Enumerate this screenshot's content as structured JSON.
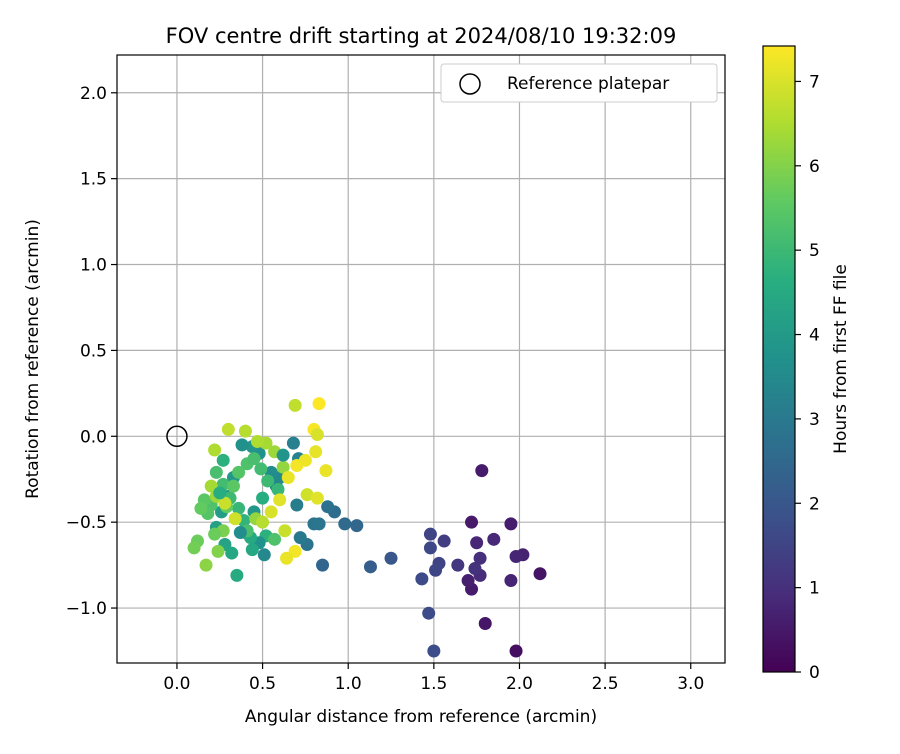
{
  "chart_data": {
    "type": "scatter",
    "title": "FOV centre drift starting at 2024/08/10 19:32:09",
    "xlabel": "Angular distance from reference (arcmin)",
    "ylabel": "Rotation from reference (arcmin)",
    "xlim": [
      -0.35,
      3.2
    ],
    "ylim": [
      -1.32,
      2.22
    ],
    "xticks": [
      0.0,
      0.5,
      1.0,
      1.5,
      2.0,
      2.5,
      3.0
    ],
    "xtick_labels": [
      "0.0",
      "0.5",
      "1.0",
      "1.5",
      "2.0",
      "2.5",
      "3.0"
    ],
    "yticks": [
      -1.0,
      -0.5,
      0.0,
      0.5,
      1.0,
      1.5,
      2.0
    ],
    "ytick_labels": [
      "−1.0",
      "−0.5",
      "0.0",
      "0.5",
      "1.0",
      "1.5",
      "2.0"
    ],
    "grid": true,
    "legend": {
      "position": "upper-right",
      "entries": [
        "Reference platepar"
      ]
    },
    "reference_point": {
      "x": 0.0,
      "y": 0.0
    },
    "colorbar": {
      "label": "Hours from first FF file",
      "range": [
        0,
        7.42
      ],
      "ticks": [
        0,
        1,
        2,
        3,
        4,
        5,
        6,
        7
      ],
      "tick_labels": [
        "0",
        "1",
        "2",
        "3",
        "4",
        "5",
        "6",
        "7"
      ],
      "colormap": "viridis"
    },
    "points": [
      [
        1.72,
        -0.5,
        0.5
      ],
      [
        1.78,
        -0.2,
        0.55
      ],
      [
        1.95,
        -0.51,
        0.6
      ],
      [
        2.02,
        -0.69,
        0.7
      ],
      [
        1.98,
        -0.7,
        0.75
      ],
      [
        1.75,
        -0.62,
        0.8
      ],
      [
        1.85,
        -0.6,
        0.85
      ],
      [
        2.12,
        -0.8,
        0.4
      ],
      [
        1.98,
        -1.25,
        0.3
      ],
      [
        1.8,
        -1.09,
        0.45
      ],
      [
        1.72,
        -0.89,
        0.55
      ],
      [
        1.7,
        -0.84,
        0.65
      ],
      [
        1.77,
        -0.81,
        0.9
      ],
      [
        1.95,
        -0.84,
        0.75
      ],
      [
        1.77,
        -0.71,
        1.0
      ],
      [
        1.74,
        -0.77,
        1.05
      ],
      [
        1.64,
        -0.75,
        1.15
      ],
      [
        1.56,
        -0.61,
        1.3
      ],
      [
        1.48,
        -0.57,
        1.5
      ],
      [
        1.48,
        -0.65,
        1.6
      ],
      [
        1.53,
        -0.74,
        1.5
      ],
      [
        1.51,
        -0.78,
        1.55
      ],
      [
        1.43,
        -0.83,
        1.7
      ],
      [
        1.47,
        -1.03,
        1.7
      ],
      [
        1.5,
        -1.25,
        1.75
      ],
      [
        1.25,
        -0.71,
        2.0
      ],
      [
        1.13,
        -0.76,
        2.2
      ],
      [
        0.85,
        -0.75,
        2.4
      ],
      [
        1.05,
        -0.52,
        2.45
      ],
      [
        0.98,
        -0.51,
        2.55
      ],
      [
        0.92,
        -0.44,
        2.6
      ],
      [
        0.88,
        -0.41,
        2.75
      ],
      [
        0.8,
        -0.51,
        2.85
      ],
      [
        0.76,
        -0.63,
        2.8
      ],
      [
        0.72,
        -0.59,
        3.0
      ],
      [
        0.7,
        -0.4,
        3.1
      ],
      [
        0.83,
        -0.51,
        2.9
      ],
      [
        0.68,
        -0.04,
        3.2
      ],
      [
        0.71,
        -0.13,
        3.3
      ],
      [
        0.6,
        -0.24,
        3.5
      ],
      [
        0.58,
        -0.29,
        3.4
      ],
      [
        0.55,
        -0.21,
        3.6
      ],
      [
        0.48,
        -0.1,
        3.7
      ],
      [
        0.44,
        -0.06,
        3.8
      ],
      [
        0.38,
        -0.05,
        3.75
      ],
      [
        0.33,
        -0.24,
        3.9
      ],
      [
        0.3,
        -0.35,
        4.0
      ],
      [
        0.26,
        -0.44,
        4.1
      ],
      [
        0.23,
        -0.53,
        4.2
      ],
      [
        0.28,
        -0.63,
        4.3
      ],
      [
        0.32,
        -0.68,
        4.4
      ],
      [
        0.35,
        -0.81,
        4.5
      ],
      [
        0.4,
        -0.56,
        3.85
      ],
      [
        0.45,
        -0.44,
        3.9
      ],
      [
        0.5,
        -0.36,
        4.6
      ],
      [
        0.52,
        -0.58,
        4.7
      ],
      [
        0.51,
        -0.69,
        3.45
      ],
      [
        0.48,
        -0.62,
        3.7
      ],
      [
        0.43,
        -0.59,
        4.5
      ],
      [
        0.39,
        -0.49,
        4.8
      ],
      [
        0.36,
        -0.42,
        4.9
      ],
      [
        0.31,
        -0.36,
        5.0
      ],
      [
        0.27,
        -0.28,
        5.1
      ],
      [
        0.23,
        -0.21,
        5.2
      ],
      [
        0.2,
        -0.4,
        5.3
      ],
      [
        0.18,
        -0.45,
        5.4
      ],
      [
        0.16,
        -0.37,
        5.5
      ],
      [
        0.14,
        -0.42,
        5.6
      ],
      [
        0.12,
        -0.61,
        5.7
      ],
      [
        0.1,
        -0.65,
        5.8
      ],
      [
        0.17,
        -0.75,
        6.1
      ],
      [
        0.24,
        -0.67,
        6.0
      ],
      [
        0.27,
        -0.55,
        5.9
      ],
      [
        0.22,
        -0.57,
        5.7
      ],
      [
        0.29,
        -0.41,
        5.6
      ],
      [
        0.33,
        -0.29,
        5.5
      ],
      [
        0.36,
        -0.21,
        5.4
      ],
      [
        0.41,
        -0.16,
        5.3
      ],
      [
        0.45,
        -0.13,
        5.2
      ],
      [
        0.49,
        -0.19,
        5.1
      ],
      [
        0.53,
        -0.26,
        5.0
      ],
      [
        0.59,
        -0.31,
        4.9
      ],
      [
        0.62,
        -0.18,
        6.2
      ],
      [
        0.57,
        -0.09,
        6.3
      ],
      [
        0.52,
        -0.04,
        6.4
      ],
      [
        0.47,
        -0.03,
        6.5
      ],
      [
        0.4,
        0.03,
        6.6
      ],
      [
        0.3,
        0.04,
        6.7
      ],
      [
        0.22,
        -0.08,
        6.5
      ],
      [
        0.2,
        -0.29,
        6.4
      ],
      [
        0.23,
        -0.35,
        6.3
      ],
      [
        0.28,
        -0.39,
        6.8
      ],
      [
        0.34,
        -0.48,
        6.9
      ],
      [
        0.41,
        -0.55,
        5.2
      ],
      [
        0.46,
        -0.48,
        6.2
      ],
      [
        0.5,
        -0.5,
        6.6
      ],
      [
        0.55,
        -0.44,
        7.0
      ],
      [
        0.6,
        -0.37,
        7.1
      ],
      [
        0.65,
        -0.24,
        7.2
      ],
      [
        0.7,
        -0.17,
        7.3
      ],
      [
        0.75,
        -0.14,
        7.25
      ],
      [
        0.8,
        0.04,
        7.35
      ],
      [
        0.83,
        0.19,
        7.4
      ],
      [
        0.69,
        0.18,
        6.7
      ],
      [
        0.82,
        0.01,
        7.0
      ],
      [
        0.87,
        -0.2,
        7.2
      ],
      [
        0.81,
        -0.09,
        7.15
      ],
      [
        0.76,
        -0.34,
        6.9
      ],
      [
        0.82,
        -0.36,
        7.1
      ],
      [
        0.69,
        -0.67,
        7.3
      ],
      [
        0.64,
        -0.71,
        7.2
      ],
      [
        0.63,
        -0.55,
        6.8
      ],
      [
        0.57,
        -0.6,
        5.3
      ],
      [
        0.44,
        -0.66,
        4.4
      ],
      [
        0.37,
        -0.56,
        3.6
      ],
      [
        0.25,
        -0.33,
        4.6
      ],
      [
        0.62,
        -0.11,
        3.8
      ],
      [
        0.27,
        -0.14,
        4.7
      ]
    ]
  }
}
